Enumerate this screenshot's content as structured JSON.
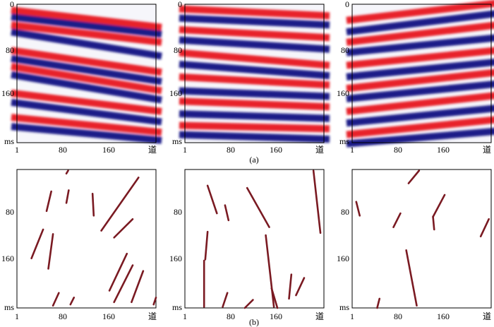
{
  "figure": {
    "captions": [
      "(a)",
      "(b)"
    ],
    "colors": {
      "red": "#e8232a",
      "blue": "#1d1a88",
      "white": "#ffffff",
      "fault": "#7a1a22",
      "frame": "#000000"
    }
  },
  "chart_data": [
    {
      "type": "seismic-section",
      "row": "a",
      "panel": 1,
      "x_ticks": [
        "1",
        "80",
        "160",
        "道"
      ],
      "y_ticks": [
        "0",
        "80",
        "160",
        "ms"
      ],
      "xlim": [
        1,
        240
      ],
      "ylim": [
        0,
        240
      ],
      "events": [
        {
          "x0": 1,
          "y0": 10,
          "x1": 240,
          "y1": 40,
          "polarity": "red"
        },
        {
          "x0": 1,
          "y0": 22,
          "x1": 240,
          "y1": 52,
          "polarity": "blue"
        },
        {
          "x0": 1,
          "y0": 36,
          "x1": 240,
          "y1": 66,
          "polarity": "red"
        },
        {
          "x0": 1,
          "y0": 48,
          "x1": 240,
          "y1": 90,
          "polarity": "blue"
        },
        {
          "x0": 1,
          "y0": 80,
          "x1": 240,
          "y1": 118,
          "polarity": "red"
        },
        {
          "x0": 1,
          "y0": 94,
          "x1": 240,
          "y1": 134,
          "polarity": "blue"
        },
        {
          "x0": 1,
          "y0": 108,
          "x1": 240,
          "y1": 150,
          "polarity": "red"
        },
        {
          "x0": 1,
          "y0": 122,
          "x1": 240,
          "y1": 166,
          "polarity": "blue"
        },
        {
          "x0": 1,
          "y0": 154,
          "x1": 240,
          "y1": 186,
          "polarity": "red"
        },
        {
          "x0": 1,
          "y0": 170,
          "x1": 240,
          "y1": 204,
          "polarity": "blue"
        },
        {
          "x0": 1,
          "y0": 196,
          "x1": 240,
          "y1": 222,
          "polarity": "red"
        },
        {
          "x0": 1,
          "y0": 212,
          "x1": 240,
          "y1": 236,
          "polarity": "blue"
        }
      ]
    },
    {
      "type": "seismic-section",
      "row": "a",
      "panel": 2,
      "x_ticks": [
        "1",
        "80",
        "160",
        "道"
      ],
      "y_ticks": [
        "0",
        "80",
        "160",
        "ms"
      ],
      "xlim": [
        1,
        240
      ],
      "ylim": [
        0,
        240
      ],
      "events": [
        {
          "x0": 1,
          "y0": 8,
          "x1": 240,
          "y1": 20,
          "polarity": "red"
        },
        {
          "x0": 1,
          "y0": 24,
          "x1": 240,
          "y1": 36,
          "polarity": "blue"
        },
        {
          "x0": 1,
          "y0": 44,
          "x1": 240,
          "y1": 58,
          "polarity": "red"
        },
        {
          "x0": 1,
          "y0": 62,
          "x1": 240,
          "y1": 78,
          "polarity": "blue"
        },
        {
          "x0": 1,
          "y0": 84,
          "x1": 240,
          "y1": 106,
          "polarity": "red"
        },
        {
          "x0": 1,
          "y0": 104,
          "x1": 240,
          "y1": 124,
          "polarity": "blue"
        },
        {
          "x0": 1,
          "y0": 126,
          "x1": 240,
          "y1": 140,
          "polarity": "red"
        },
        {
          "x0": 1,
          "y0": 150,
          "x1": 240,
          "y1": 160,
          "polarity": "blue"
        },
        {
          "x0": 1,
          "y0": 168,
          "x1": 240,
          "y1": 178,
          "polarity": "red"
        },
        {
          "x0": 1,
          "y0": 190,
          "x1": 240,
          "y1": 198,
          "polarity": "blue"
        },
        {
          "x0": 1,
          "y0": 210,
          "x1": 240,
          "y1": 216,
          "polarity": "red"
        },
        {
          "x0": 1,
          "y0": 226,
          "x1": 240,
          "y1": 234,
          "polarity": "blue"
        }
      ]
    },
    {
      "type": "seismic-section",
      "row": "a",
      "panel": 3,
      "x_ticks": [
        "1",
        "80",
        "160",
        "道"
      ],
      "y_ticks": [
        "0",
        "80",
        "160",
        "ms"
      ],
      "xlim": [
        1,
        240
      ],
      "ylim": [
        0,
        240
      ],
      "events": [
        {
          "x0": 1,
          "y0": 28,
          "x1": 240,
          "y1": -2,
          "polarity": "red"
        },
        {
          "x0": 1,
          "y0": 48,
          "x1": 240,
          "y1": 16,
          "polarity": "blue"
        },
        {
          "x0": 1,
          "y0": 66,
          "x1": 240,
          "y1": 36,
          "polarity": "red"
        },
        {
          "x0": 1,
          "y0": 84,
          "x1": 240,
          "y1": 58,
          "polarity": "blue"
        },
        {
          "x0": 1,
          "y0": 106,
          "x1": 240,
          "y1": 80,
          "polarity": "red"
        },
        {
          "x0": 1,
          "y0": 126,
          "x1": 240,
          "y1": 100,
          "polarity": "blue"
        },
        {
          "x0": 1,
          "y0": 146,
          "x1": 240,
          "y1": 118,
          "polarity": "red"
        },
        {
          "x0": 1,
          "y0": 164,
          "x1": 240,
          "y1": 138,
          "polarity": "blue"
        },
        {
          "x0": 1,
          "y0": 186,
          "x1": 240,
          "y1": 158,
          "polarity": "red"
        },
        {
          "x0": 1,
          "y0": 206,
          "x1": 240,
          "y1": 180,
          "polarity": "blue"
        },
        {
          "x0": 1,
          "y0": 226,
          "x1": 240,
          "y1": 200,
          "polarity": "red"
        },
        {
          "x0": 1,
          "y0": 242,
          "x1": 240,
          "y1": 220,
          "polarity": "blue"
        }
      ]
    },
    {
      "type": "fault-map",
      "row": "b",
      "panel": 1,
      "x_ticks": [
        "1",
        "80",
        "160",
        "道"
      ],
      "y_ticks": [
        "80",
        "160",
        "ms"
      ],
      "xlim": [
        1,
        240
      ],
      "ylim": [
        0,
        240
      ],
      "segments": [
        {
          "x0": 89,
          "y0": 2,
          "x1": 86,
          "y1": 7
        },
        {
          "x0": 60,
          "y0": 38,
          "x1": 52,
          "y1": 72
        },
        {
          "x0": 90,
          "y0": 36,
          "x1": 86,
          "y1": 58
        },
        {
          "x0": 131,
          "y0": 42,
          "x1": 133,
          "y1": 80
        },
        {
          "x0": 210,
          "y0": 14,
          "x1": 146,
          "y1": 106
        },
        {
          "x0": 200,
          "y0": 86,
          "x1": 168,
          "y1": 118
        },
        {
          "x0": 46,
          "y0": 104,
          "x1": 26,
          "y1": 154
        },
        {
          "x0": 63,
          "y0": 112,
          "x1": 55,
          "y1": 172
        },
        {
          "x0": 190,
          "y0": 146,
          "x1": 160,
          "y1": 210
        },
        {
          "x0": 200,
          "y0": 166,
          "x1": 168,
          "y1": 230
        },
        {
          "x0": 218,
          "y0": 176,
          "x1": 198,
          "y1": 230
        },
        {
          "x0": 73,
          "y0": 214,
          "x1": 63,
          "y1": 236
        },
        {
          "x0": 99,
          "y0": 222,
          "x1": 93,
          "y1": 234
        },
        {
          "x0": 240,
          "y0": 222,
          "x1": 236,
          "y1": 234
        }
      ]
    },
    {
      "type": "fault-map",
      "row": "b",
      "panel": 2,
      "x_ticks": [
        "1",
        "80",
        "160",
        "道"
      ],
      "y_ticks": [
        "80",
        "160",
        "ms"
      ],
      "xlim": [
        1,
        240
      ],
      "ylim": [
        0,
        240
      ],
      "segments": [
        {
          "x0": 40,
          "y0": 28,
          "x1": 56,
          "y1": 76
        },
        {
          "x0": 70,
          "y0": 62,
          "x1": 76,
          "y1": 88
        },
        {
          "x0": 108,
          "y0": 32,
          "x1": 146,
          "y1": 100
        },
        {
          "x0": 222,
          "y0": 2,
          "x1": 234,
          "y1": 110
        },
        {
          "x0": 40,
          "y0": 108,
          "x1": 36,
          "y1": 156
        },
        {
          "x0": 34,
          "y0": 158,
          "x1": 34,
          "y1": 238
        },
        {
          "x0": 140,
          "y0": 114,
          "x1": 154,
          "y1": 238
        },
        {
          "x0": 184,
          "y0": 182,
          "x1": 180,
          "y1": 224
        },
        {
          "x0": 206,
          "y0": 188,
          "x1": 192,
          "y1": 218
        },
        {
          "x0": 74,
          "y0": 214,
          "x1": 66,
          "y1": 238
        },
        {
          "x0": 118,
          "y0": 226,
          "x1": 104,
          "y1": 240
        },
        {
          "x0": 150,
          "y0": 206,
          "x1": 160,
          "y1": 240
        }
      ]
    },
    {
      "type": "fault-map",
      "row": "b",
      "panel": 3,
      "x_ticks": [
        "1",
        "80",
        "160",
        "道"
      ],
      "y_ticks": [
        "80",
        "160",
        "ms"
      ],
      "xlim": [
        1,
        240
      ],
      "ylim": [
        0,
        240
      ],
      "segments": [
        {
          "x0": 116,
          "y0": 2,
          "x1": 98,
          "y1": 24
        },
        {
          "x0": 8,
          "y0": 56,
          "x1": 14,
          "y1": 80
        },
        {
          "x0": 160,
          "y0": 44,
          "x1": 140,
          "y1": 82
        },
        {
          "x0": 84,
          "y0": 76,
          "x1": 72,
          "y1": 100
        },
        {
          "x0": 140,
          "y0": 82,
          "x1": 142,
          "y1": 104
        },
        {
          "x0": 236,
          "y0": 86,
          "x1": 222,
          "y1": 116
        },
        {
          "x0": 94,
          "y0": 140,
          "x1": 112,
          "y1": 236
        },
        {
          "x0": 48,
          "y0": 224,
          "x1": 44,
          "y1": 240
        }
      ]
    }
  ]
}
